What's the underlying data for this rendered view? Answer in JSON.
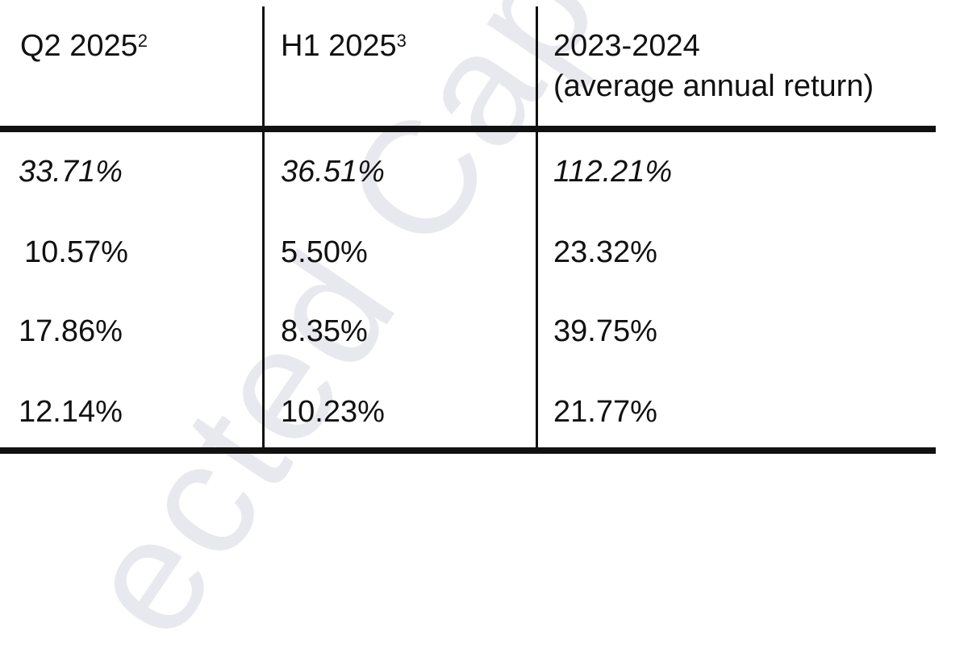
{
  "watermark": "ected Cap",
  "table": {
    "headers": [
      {
        "text": "Q2 2025",
        "note": "2"
      },
      {
        "text": "H1 2025",
        "note": "3"
      },
      {
        "lines": [
          "2023-2024",
          "(average annual return)"
        ]
      }
    ],
    "rows": [
      [
        "33.71%",
        "36.51%",
        "112.21%"
      ],
      [
        "10.57%",
        "5.50%",
        "23.32%"
      ],
      [
        "17.86%",
        "8.35%",
        "39.75%"
      ],
      [
        "12.14%",
        "10.23%",
        "21.77%"
      ]
    ]
  }
}
